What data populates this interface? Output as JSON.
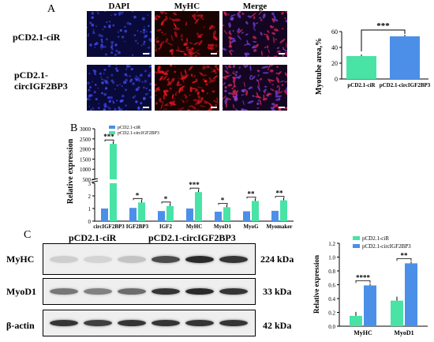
{
  "panels": {
    "a": "A",
    "b": "B",
    "c": "C"
  },
  "panel_a": {
    "columns": [
      "DAPI",
      "MyHC",
      "Merge"
    ],
    "rows": [
      "pCD2.1-ciR",
      "pCD2.1-\ncircIGF2BP3"
    ]
  },
  "panel_c": {
    "top_labels": [
      "pCD2.1-ciR",
      "pCD2.1-circIGF2BP3"
    ],
    "blots": [
      {
        "name": "MyHC",
        "kda": "224 kDa"
      },
      {
        "name": "MyoD1",
        "kda": "33 kDa"
      },
      {
        "name": "β-actin",
        "kda": "42 kDa"
      }
    ]
  },
  "colors": {
    "ciR": "#49e3a6",
    "circ": "#4c8fe9"
  },
  "chart_data": [
    {
      "type": "bar",
      "title": "",
      "ylabel": "Myotube area,%",
      "categories": [
        "pCD2.1-ciR",
        "pCD2.1-circIGF2BP3"
      ],
      "values": [
        29,
        54
      ],
      "yticks": [
        "0",
        "20",
        "40",
        "60"
      ],
      "ylim": [
        0,
        60
      ],
      "annotation": "***"
    },
    {
      "type": "bar",
      "title": "",
      "ylabel": "Relative expression",
      "categories": [
        "circIGF2BP3",
        "IGF2BP3",
        "IGF2",
        "MyHC",
        "MyoD1",
        "MyoG",
        "Myomaker"
      ],
      "series": [
        {
          "name": "pCD2.1-ciR",
          "values": [
            1,
            1.05,
            0.8,
            1,
            0.75,
            0.78,
            0.82
          ]
        },
        {
          "name": "pCD2.1-circIGF2BP3",
          "values": [
            2250,
            1.48,
            1.2,
            2.3,
            1.1,
            1.6,
            1.65
          ]
        }
      ],
      "yticks": [
        "0",
        "1",
        "2",
        "3",
        "500",
        "1000",
        "1500",
        "2000",
        "2500",
        "3000"
      ],
      "axis_break": true,
      "significance": [
        "***",
        "*",
        "*",
        "***",
        "*",
        "**",
        "**"
      ],
      "legend": "top-left"
    },
    {
      "type": "bar",
      "title": "",
      "ylabel": "Relative expression",
      "categories": [
        "MyHC",
        "MyoD1"
      ],
      "series": [
        {
          "name": "pCD2.1-ciR",
          "values": [
            0.15,
            0.37
          ]
        },
        {
          "name": "pCD2.1-circIGF2BP3",
          "values": [
            0.59,
            0.91
          ]
        }
      ],
      "yticks": [
        "0.0",
        "0.2",
        "0.4",
        "0.6",
        "0.8",
        "1.0",
        "1.2"
      ],
      "ylim": [
        0,
        1.2
      ],
      "significance": [
        "****",
        "**"
      ],
      "legend": "top-right"
    }
  ]
}
